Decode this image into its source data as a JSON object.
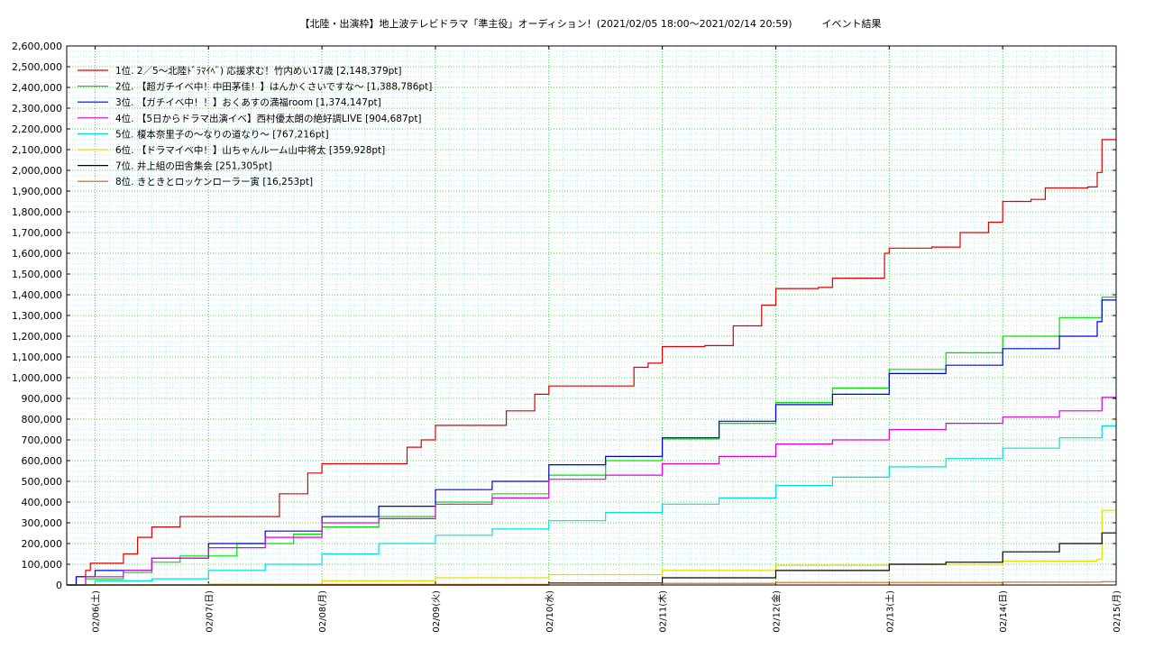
{
  "chart_data": {
    "type": "line",
    "title": "【北陸・出演枠】地上波テレビドラマ「準主役」オーディション！(2021/02/05 18:00〜2021/02/14 20:59)　　　イベント結果",
    "xlabel": "",
    "ylabel": "",
    "ylim": [
      0,
      2600000
    ],
    "xlim": [
      "2021-02-05T18:00",
      "2021-02-15T00:00"
    ],
    "yticks": [
      "0",
      "100,000",
      "200,000",
      "300,000",
      "400,000",
      "500,000",
      "600,000",
      "700,000",
      "800,000",
      "900,000",
      "1,000,000",
      "1,100,000",
      "1,200,000",
      "1,300,000",
      "1,400,000",
      "1,500,000",
      "1,600,000",
      "1,700,000",
      "1,800,000",
      "1,900,000",
      "2,000,000",
      "2,100,000",
      "2,200,000",
      "2,300,000",
      "2,400,000",
      "2,500,000",
      "2,600,000"
    ],
    "xticks": [
      {
        "x": "2021-02-06T00:00",
        "label": "02/06(土)"
      },
      {
        "x": "2021-02-07T00:00",
        "label": "02/07(日)"
      },
      {
        "x": "2021-02-08T00:00",
        "label": "02/08(月)"
      },
      {
        "x": "2021-02-09T00:00",
        "label": "02/09(火)"
      },
      {
        "x": "2021-02-10T00:00",
        "label": "02/10(水)"
      },
      {
        "x": "2021-02-11T00:00",
        "label": "02/11(木)"
      },
      {
        "x": "2021-02-12T00:00",
        "label": "02/12(金)"
      },
      {
        "x": "2021-02-13T00:00",
        "label": "02/13(土)"
      },
      {
        "x": "2021-02-14T00:00",
        "label": "02/14(日)"
      },
      {
        "x": "2021-02-15T00:00",
        "label": "02/15(月)"
      }
    ],
    "grid": true,
    "legend_position": "top-left",
    "series": [
      {
        "name": "1位. 2／5〜北陸ﾄﾞﾗﾏｲﾍﾞ) 応援求む！竹内めい17歳 [2,148,379pt]",
        "color": "#e00000",
        "points": [
          [
            "2021-02-05T18:00",
            0
          ],
          [
            "2021-02-05T20:00",
            40000
          ],
          [
            "2021-02-05T22:00",
            70000
          ],
          [
            "2021-02-05T23:00",
            105000
          ],
          [
            "2021-02-06T04:00",
            105000
          ],
          [
            "2021-02-06T06:00",
            150000
          ],
          [
            "2021-02-06T09:00",
            230000
          ],
          [
            "2021-02-06T12:00",
            280000
          ],
          [
            "2021-02-06T18:00",
            330000
          ],
          [
            "2021-02-07T09:00",
            330000
          ],
          [
            "2021-02-07T15:00",
            440000
          ],
          [
            "2021-02-07T21:00",
            540000
          ],
          [
            "2021-02-08T00:00",
            585000
          ],
          [
            "2021-02-08T10:00",
            585000
          ],
          [
            "2021-02-08T18:00",
            665000
          ],
          [
            "2021-02-08T21:00",
            700000
          ],
          [
            "2021-02-09T00:00",
            770000
          ],
          [
            "2021-02-09T09:00",
            770000
          ],
          [
            "2021-02-09T15:00",
            840000
          ],
          [
            "2021-02-09T21:00",
            920000
          ],
          [
            "2021-02-10T00:00",
            960000
          ],
          [
            "2021-02-10T10:00",
            960000
          ],
          [
            "2021-02-10T18:00",
            1050000
          ],
          [
            "2021-02-10T21:00",
            1070000
          ],
          [
            "2021-02-11T00:00",
            1150000
          ],
          [
            "2021-02-11T09:00",
            1155000
          ],
          [
            "2021-02-11T15:00",
            1250000
          ],
          [
            "2021-02-11T21:00",
            1350000
          ],
          [
            "2021-02-12T00:00",
            1430000
          ],
          [
            "2021-02-12T09:00",
            1435000
          ],
          [
            "2021-02-12T12:00",
            1480000
          ],
          [
            "2021-02-12T18:00",
            1480000
          ],
          [
            "2021-02-12T23:00",
            1600000
          ],
          [
            "2021-02-13T00:00",
            1625000
          ],
          [
            "2021-02-13T09:00",
            1630000
          ],
          [
            "2021-02-13T15:00",
            1700000
          ],
          [
            "2021-02-13T21:00",
            1750000
          ],
          [
            "2021-02-14T00:00",
            1850000
          ],
          [
            "2021-02-14T06:00",
            1860000
          ],
          [
            "2021-02-14T09:00",
            1915000
          ],
          [
            "2021-02-14T18:00",
            1920000
          ],
          [
            "2021-02-14T20:00",
            1990000
          ],
          [
            "2021-02-14T21:00",
            2148379
          ],
          [
            "2021-02-15T00:00",
            2148379
          ]
        ]
      },
      {
        "name": "2位. 【超ガチイベ中！中田茅佳！】はんかくさいですな〜 [1,388,786pt]",
        "color": "#00e000",
        "points": [
          [
            "2021-02-05T18:00",
            0
          ],
          [
            "2021-02-05T22:00",
            30000
          ],
          [
            "2021-02-06T06:00",
            60000
          ],
          [
            "2021-02-06T12:00",
            110000
          ],
          [
            "2021-02-06T18:00",
            140000
          ],
          [
            "2021-02-07T06:00",
            200000
          ],
          [
            "2021-02-07T18:00",
            245000
          ],
          [
            "2021-02-08T00:00",
            280000
          ],
          [
            "2021-02-08T12:00",
            330000
          ],
          [
            "2021-02-09T00:00",
            400000
          ],
          [
            "2021-02-09T12:00",
            440000
          ],
          [
            "2021-02-10T00:00",
            530000
          ],
          [
            "2021-02-10T12:00",
            600000
          ],
          [
            "2021-02-11T00:00",
            705000
          ],
          [
            "2021-02-11T12:00",
            780000
          ],
          [
            "2021-02-12T00:00",
            880000
          ],
          [
            "2021-02-12T12:00",
            950000
          ],
          [
            "2021-02-13T00:00",
            1040000
          ],
          [
            "2021-02-13T12:00",
            1120000
          ],
          [
            "2021-02-14T00:00",
            1200000
          ],
          [
            "2021-02-14T12:00",
            1290000
          ],
          [
            "2021-02-14T21:00",
            1388786
          ],
          [
            "2021-02-15T00:00",
            1388786
          ]
        ]
      },
      {
        "name": "3位. 【ガチイベ中！！】おくあすの満福room [1,374,147pt]",
        "color": "#0000e0",
        "points": [
          [
            "2021-02-05T18:00",
            0
          ],
          [
            "2021-02-05T20:00",
            40000
          ],
          [
            "2021-02-06T00:00",
            70000
          ],
          [
            "2021-02-06T12:00",
            130000
          ],
          [
            "2021-02-07T00:00",
            200000
          ],
          [
            "2021-02-07T12:00",
            260000
          ],
          [
            "2021-02-08T00:00",
            330000
          ],
          [
            "2021-02-08T12:00",
            380000
          ],
          [
            "2021-02-09T00:00",
            460000
          ],
          [
            "2021-02-09T12:00",
            500000
          ],
          [
            "2021-02-10T00:00",
            580000
          ],
          [
            "2021-02-10T12:00",
            620000
          ],
          [
            "2021-02-11T00:00",
            710000
          ],
          [
            "2021-02-11T12:00",
            790000
          ],
          [
            "2021-02-12T00:00",
            870000
          ],
          [
            "2021-02-12T12:00",
            920000
          ],
          [
            "2021-02-13T00:00",
            1020000
          ],
          [
            "2021-02-13T12:00",
            1060000
          ],
          [
            "2021-02-14T00:00",
            1140000
          ],
          [
            "2021-02-14T12:00",
            1200000
          ],
          [
            "2021-02-14T20:00",
            1270000
          ],
          [
            "2021-02-14T21:00",
            1374147
          ],
          [
            "2021-02-15T00:00",
            1374147
          ]
        ]
      },
      {
        "name": "4位. 【5日からドラマ出演イベ】西村優太朗の絶好調LIVE [904,687pt]",
        "color": "#e000e0",
        "points": [
          [
            "2021-02-05T18:00",
            0
          ],
          [
            "2021-02-05T22:00",
            40000
          ],
          [
            "2021-02-06T06:00",
            70000
          ],
          [
            "2021-02-06T12:00",
            130000
          ],
          [
            "2021-02-07T00:00",
            180000
          ],
          [
            "2021-02-07T12:00",
            230000
          ],
          [
            "2021-02-08T00:00",
            300000
          ],
          [
            "2021-02-08T12:00",
            320000
          ],
          [
            "2021-02-09T00:00",
            390000
          ],
          [
            "2021-02-09T12:00",
            420000
          ],
          [
            "2021-02-10T00:00",
            510000
          ],
          [
            "2021-02-10T12:00",
            530000
          ],
          [
            "2021-02-11T00:00",
            585000
          ],
          [
            "2021-02-11T12:00",
            620000
          ],
          [
            "2021-02-12T00:00",
            680000
          ],
          [
            "2021-02-12T12:00",
            700000
          ],
          [
            "2021-02-13T00:00",
            750000
          ],
          [
            "2021-02-13T12:00",
            780000
          ],
          [
            "2021-02-14T00:00",
            810000
          ],
          [
            "2021-02-14T12:00",
            840000
          ],
          [
            "2021-02-14T21:00",
            904687
          ],
          [
            "2021-02-15T00:00",
            904687
          ]
        ]
      },
      {
        "name": "5位. 榎本奈里子の〜なりの道なり〜 [767,216pt]",
        "color": "#00e0e0",
        "points": [
          [
            "2021-02-05T18:00",
            0
          ],
          [
            "2021-02-06T00:00",
            20000
          ],
          [
            "2021-02-06T12:00",
            30000
          ],
          [
            "2021-02-07T00:00",
            70000
          ],
          [
            "2021-02-07T12:00",
            100000
          ],
          [
            "2021-02-08T00:00",
            150000
          ],
          [
            "2021-02-08T12:00",
            200000
          ],
          [
            "2021-02-09T00:00",
            240000
          ],
          [
            "2021-02-09T12:00",
            270000
          ],
          [
            "2021-02-10T00:00",
            310000
          ],
          [
            "2021-02-10T12:00",
            350000
          ],
          [
            "2021-02-11T00:00",
            390000
          ],
          [
            "2021-02-11T12:00",
            420000
          ],
          [
            "2021-02-12T00:00",
            480000
          ],
          [
            "2021-02-12T12:00",
            520000
          ],
          [
            "2021-02-13T00:00",
            570000
          ],
          [
            "2021-02-13T12:00",
            610000
          ],
          [
            "2021-02-14T00:00",
            660000
          ],
          [
            "2021-02-14T12:00",
            710000
          ],
          [
            "2021-02-14T21:00",
            767216
          ],
          [
            "2021-02-15T00:00",
            767216
          ]
        ]
      },
      {
        "name": "6位. 【ドラマイベ中！】山ちゃんルーム山中将太 [359,928pt]",
        "color": "#e0e000",
        "points": [
          [
            "2021-02-05T18:00",
            0
          ],
          [
            "2021-02-07T00:00",
            5000
          ],
          [
            "2021-02-08T00:00",
            20000
          ],
          [
            "2021-02-09T00:00",
            35000
          ],
          [
            "2021-02-10T00:00",
            50000
          ],
          [
            "2021-02-11T00:00",
            70000
          ],
          [
            "2021-02-12T00:00",
            95000
          ],
          [
            "2021-02-13T00:00",
            100000
          ],
          [
            "2021-02-14T00:00",
            115000
          ],
          [
            "2021-02-14T20:00",
            125000
          ],
          [
            "2021-02-14T21:00",
            359928
          ],
          [
            "2021-02-15T00:00",
            359928
          ]
        ]
      },
      {
        "name": "7位. 井上組の田舎集会 [251,305pt]",
        "color": "#000000",
        "points": [
          [
            "2021-02-05T18:00",
            0
          ],
          [
            "2021-02-09T18:00",
            0
          ],
          [
            "2021-02-10T00:00",
            10000
          ],
          [
            "2021-02-11T00:00",
            35000
          ],
          [
            "2021-02-12T00:00",
            70000
          ],
          [
            "2021-02-13T00:00",
            100000
          ],
          [
            "2021-02-13T12:00",
            110000
          ],
          [
            "2021-02-14T00:00",
            160000
          ],
          [
            "2021-02-14T12:00",
            200000
          ],
          [
            "2021-02-14T21:00",
            251305
          ],
          [
            "2021-02-15T00:00",
            251305
          ]
        ]
      },
      {
        "name": "8位. きときとロッケンローラー寅 [16,253pt]",
        "color": "#e06000",
        "points": [
          [
            "2021-02-05T18:00",
            0
          ],
          [
            "2021-02-08T00:00",
            3000
          ],
          [
            "2021-02-10T00:00",
            8000
          ],
          [
            "2021-02-12T00:00",
            12000
          ],
          [
            "2021-02-14T00:00",
            14000
          ],
          [
            "2021-02-14T21:00",
            16253
          ],
          [
            "2021-02-15T00:00",
            16253
          ]
        ]
      }
    ]
  }
}
